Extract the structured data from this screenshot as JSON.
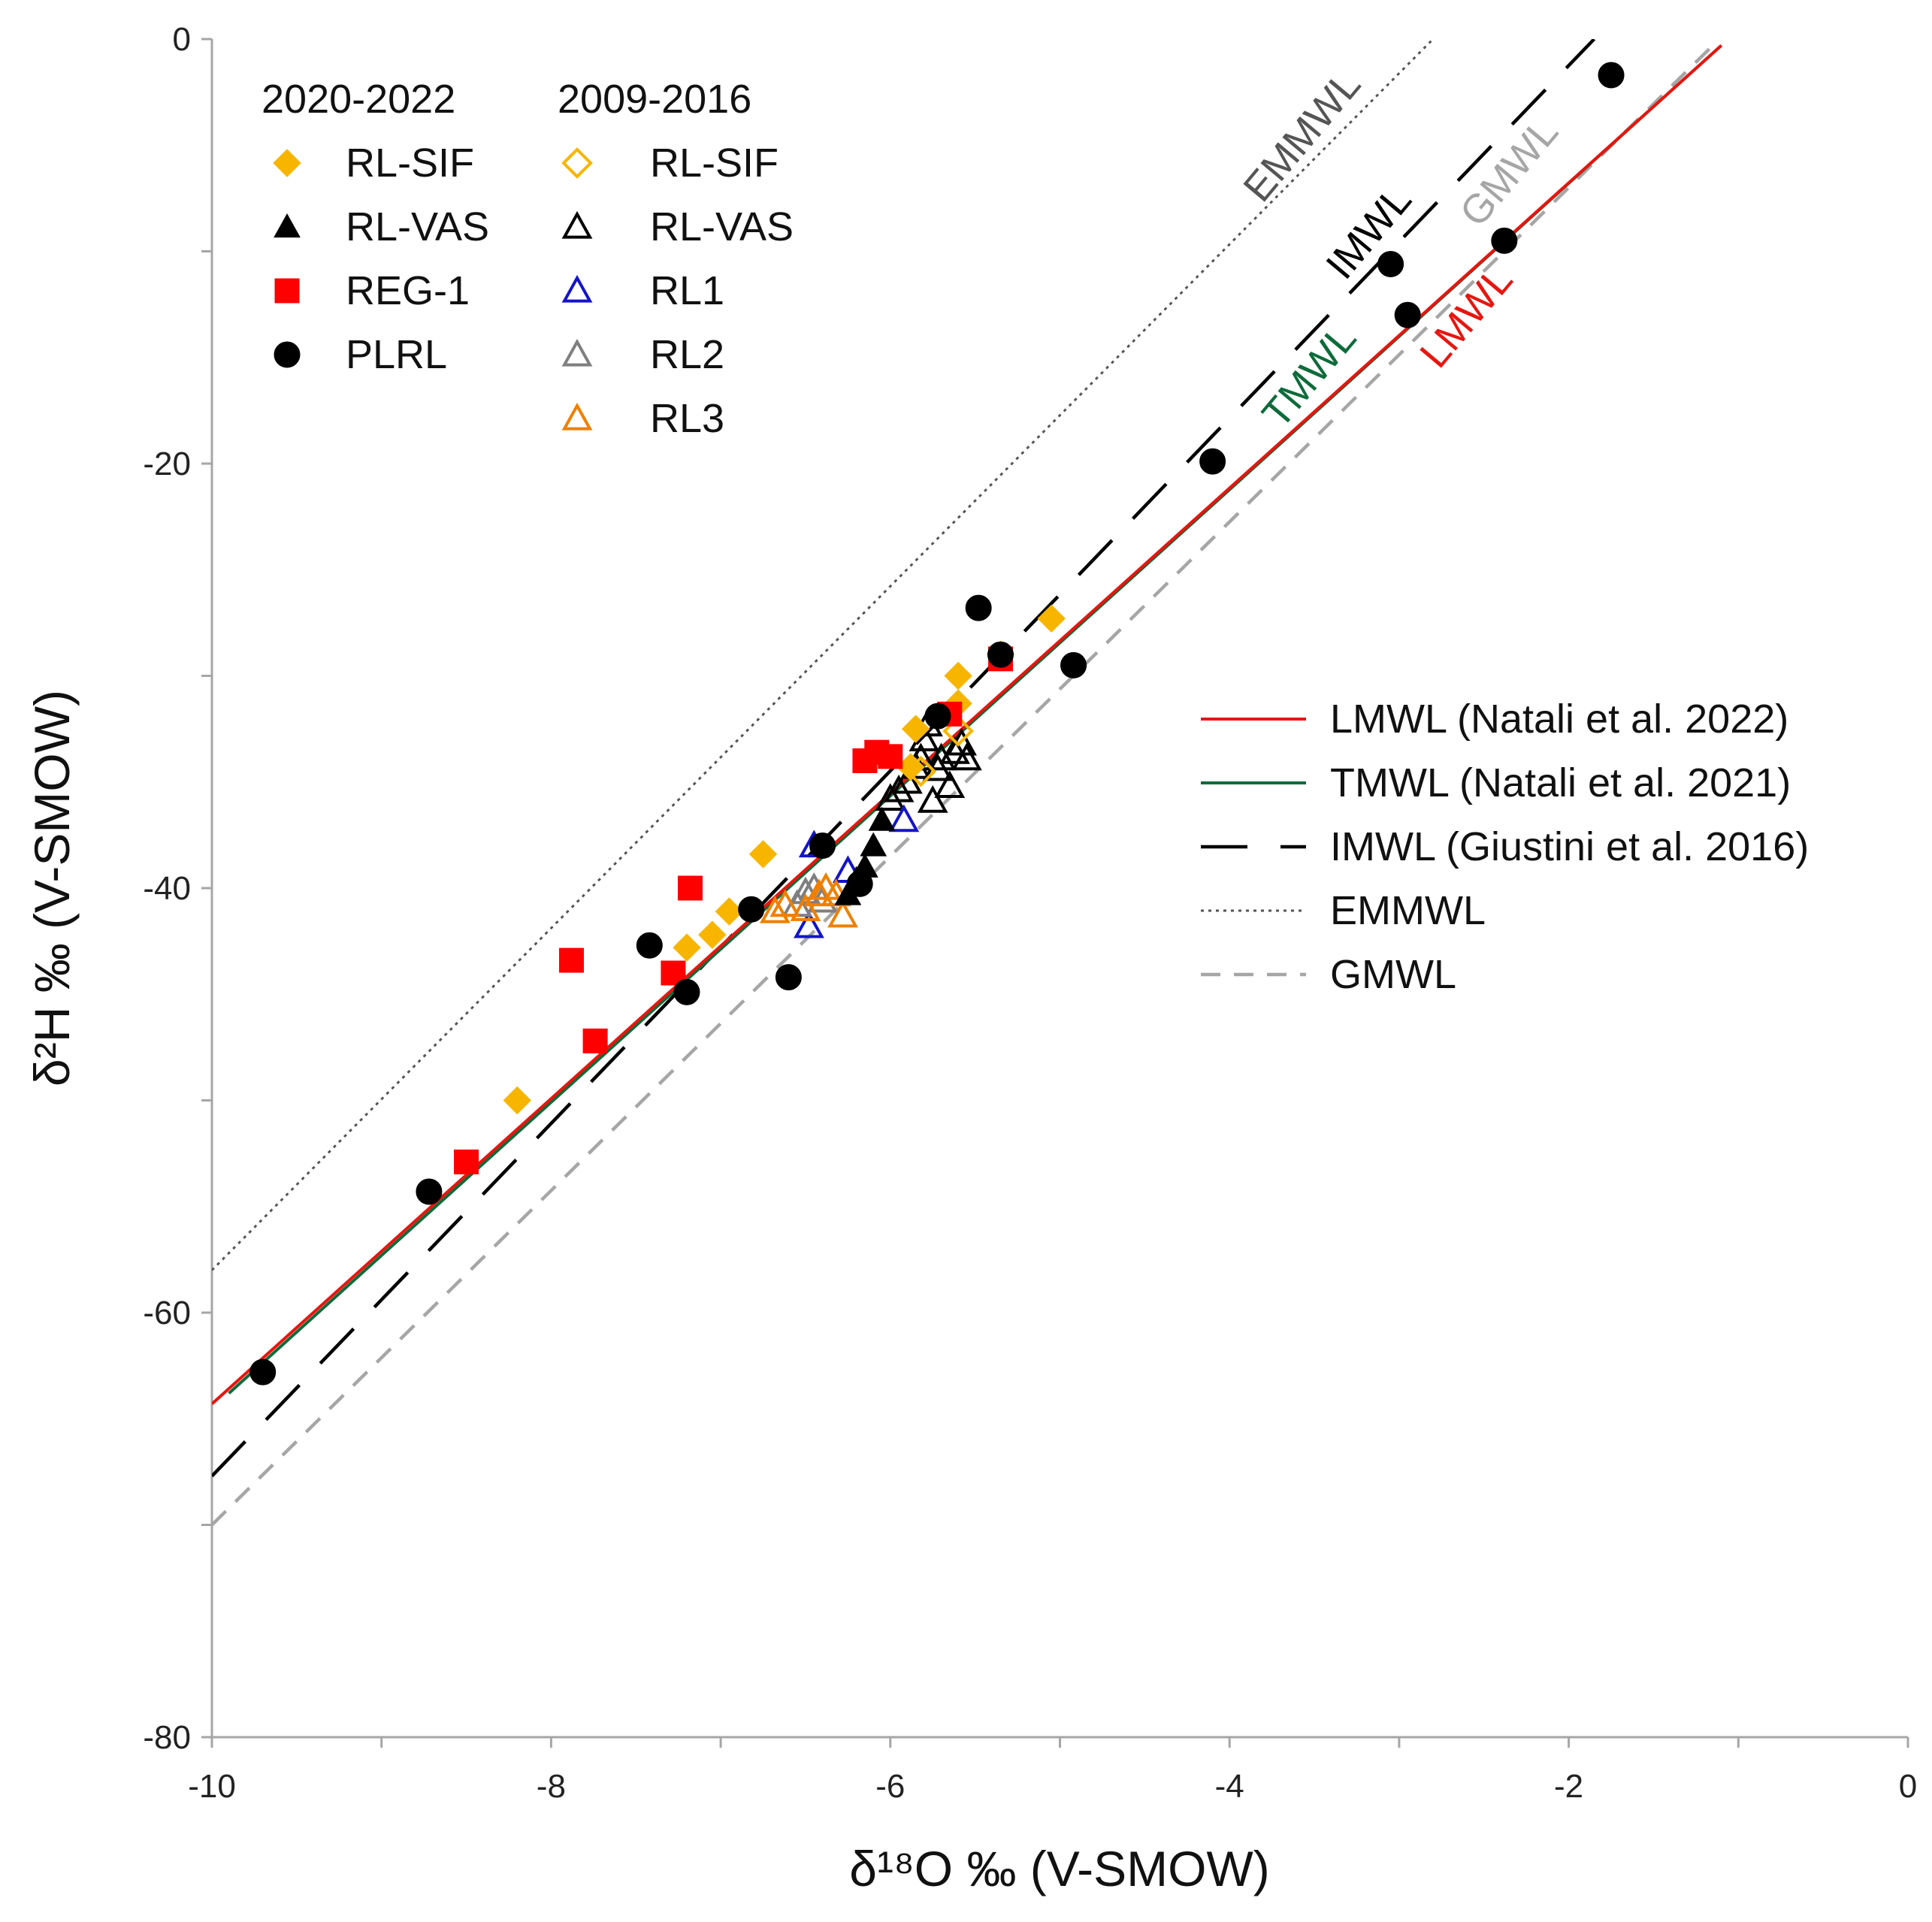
{
  "chart_data": {
    "type": "scatter",
    "xlabel": "δ¹⁸O ‰ (V-SMOW)",
    "ylabel": "δ²H ‰ (V-SMOW)",
    "xlim": [
      -10,
      0
    ],
    "ylim": [
      -80,
      0
    ],
    "x_ticks": [
      -10,
      -8,
      -6,
      -4,
      -2,
      0
    ],
    "y_ticks": [
      0,
      -20,
      -40,
      -60,
      -80
    ],
    "grid": false,
    "legend_groups": [
      {
        "title": "2020-2022",
        "entries": [
          "RL-SIF",
          "RL-VAS",
          "REG-1",
          "PLRL"
        ]
      },
      {
        "title": "2009-2016",
        "entries": [
          "RL-SIF",
          "RL-VAS",
          "RL1",
          "RL2",
          "RL3"
        ]
      }
    ],
    "lines": [
      {
        "name": "LMWL (Natali et al. 2022)",
        "label": "LMWL",
        "color": "#e8150f",
        "dash": "solid",
        "x": [
          -10.0,
          -1.1
        ],
        "y": [
          -64.3,
          -0.3
        ]
      },
      {
        "name": "TMWL (Natali et al. 2021)",
        "label": "TMWL",
        "color": "#0e6b3a",
        "dash": "solid",
        "x": [
          -9.9,
          -1.1
        ],
        "y": [
          -63.8,
          -0.3
        ]
      },
      {
        "name": "IMWL (Giustini et al. 2016)",
        "label": "IMWL",
        "color": "#000000",
        "dash": "longdash",
        "x": [
          -10.0,
          -1.85
        ],
        "y": [
          -67.7,
          0.0
        ]
      },
      {
        "name": "EMMWL",
        "label": "EMMWL",
        "color": "#555555",
        "dash": "dotted",
        "x": [
          -10.0,
          -2.8
        ],
        "y": [
          -58.0,
          0.0
        ]
      },
      {
        "name": "GMWL",
        "label": "GMWL",
        "color": "#a6a6a6",
        "dash": "dashed",
        "x": [
          -10.0,
          -1.15
        ],
        "y": [
          -70.0,
          -0.3
        ]
      }
    ],
    "series": [
      {
        "name": "RL-SIF",
        "period": "2020-2022",
        "marker": "diamond",
        "filled": true,
        "color": "#f7b500",
        "points": [
          [
            -8.2,
            -50.0
          ],
          [
            -7.2,
            -42.8
          ],
          [
            -7.05,
            -42.2
          ],
          [
            -6.95,
            -41.1
          ],
          [
            -6.75,
            -38.4
          ],
          [
            -5.88,
            -34.3
          ],
          [
            -5.85,
            -32.5
          ],
          [
            -5.6,
            -31.3
          ],
          [
            -5.6,
            -30.0
          ],
          [
            -5.05,
            -27.3
          ],
          [
            -5.35,
            -29.0
          ]
        ]
      },
      {
        "name": "RL-VAS",
        "period": "2020-2022",
        "marker": "triangle",
        "filled": true,
        "color": "#000000",
        "points": [
          [
            -6.25,
            -40.3
          ],
          [
            -6.2,
            -39.6
          ],
          [
            -6.15,
            -39.0
          ],
          [
            -6.1,
            -38.0
          ],
          [
            -6.05,
            -36.8
          ]
        ]
      },
      {
        "name": "REG-1",
        "period": "2020-2022",
        "marker": "square",
        "filled": true,
        "color": "#ff0000",
        "points": [
          [
            -8.5,
            -52.9
          ],
          [
            -7.88,
            -43.4
          ],
          [
            -7.74,
            -47.2
          ],
          [
            -7.28,
            -44.0
          ],
          [
            -7.18,
            -40.0
          ],
          [
            -6.15,
            -34.0
          ],
          [
            -6.08,
            -33.6
          ],
          [
            -6.0,
            -33.8
          ],
          [
            -5.65,
            -31.8
          ],
          [
            -5.35,
            -29.2
          ]
        ]
      },
      {
        "name": "PLRL",
        "period": "2020-2022",
        "marker": "circle",
        "filled": true,
        "color": "#000000",
        "points": [
          [
            -9.7,
            -62.8
          ],
          [
            -8.72,
            -54.3
          ],
          [
            -7.42,
            -42.7
          ],
          [
            -7.2,
            -44.9
          ],
          [
            -6.82,
            -41.0
          ],
          [
            -6.6,
            -44.2
          ],
          [
            -6.4,
            -38.0
          ],
          [
            -6.18,
            -39.8
          ],
          [
            -5.72,
            -31.9
          ],
          [
            -5.48,
            -26.8
          ],
          [
            -5.35,
            -29.0
          ],
          [
            -4.92,
            -29.5
          ],
          [
            -4.1,
            -19.9
          ],
          [
            -3.05,
            -10.6
          ],
          [
            -2.95,
            -13.0
          ],
          [
            -2.38,
            -9.5
          ],
          [
            -1.75,
            -1.7
          ]
        ]
      },
      {
        "name": "RL-SIF",
        "period": "2009-2016",
        "marker": "diamond",
        "filled": false,
        "color": "#f7b500",
        "points": [
          [
            -5.82,
            -34.5
          ],
          [
            -5.6,
            -32.6
          ]
        ]
      },
      {
        "name": "RL-VAS",
        "period": "2009-2016",
        "marker": "triangle",
        "filled": false,
        "color": "#000000",
        "points": [
          [
            -6.0,
            -35.8
          ],
          [
            -5.95,
            -35.4
          ],
          [
            -5.9,
            -35.0
          ],
          [
            -5.85,
            -34.3
          ],
          [
            -5.82,
            -33.9
          ],
          [
            -5.8,
            -33.0
          ],
          [
            -5.78,
            -32.3
          ],
          [
            -5.75,
            -35.9
          ],
          [
            -5.72,
            -34.4
          ],
          [
            -5.7,
            -33.9
          ],
          [
            -5.65,
            -35.2
          ],
          [
            -5.62,
            -33.6
          ],
          [
            -5.58,
            -33.2
          ],
          [
            -5.55,
            -33.9
          ]
        ]
      },
      {
        "name": "RL1",
        "period": "2009-2016",
        "marker": "triangle",
        "filled": false,
        "color": "#1414cc",
        "points": [
          [
            -6.45,
            -38.0
          ],
          [
            -6.48,
            -41.8
          ],
          [
            -6.25,
            -39.2
          ],
          [
            -5.92,
            -36.8
          ]
        ]
      },
      {
        "name": "RL2",
        "period": "2009-2016",
        "marker": "triangle",
        "filled": false,
        "color": "#7f7f7f",
        "points": [
          [
            -6.55,
            -40.8
          ],
          [
            -6.5,
            -40.2
          ],
          [
            -6.45,
            -40.0
          ],
          [
            -6.4,
            -40.6
          ]
        ]
      },
      {
        "name": "RL3",
        "period": "2009-2016",
        "marker": "triangle",
        "filled": false,
        "color": "#f07f00",
        "points": [
          [
            -6.68,
            -41.1
          ],
          [
            -6.62,
            -40.8
          ],
          [
            -6.5,
            -41.0
          ],
          [
            -6.42,
            -40.3
          ],
          [
            -6.38,
            -40.0
          ],
          [
            -6.32,
            -40.3
          ],
          [
            -6.28,
            -41.3
          ]
        ]
      }
    ]
  }
}
